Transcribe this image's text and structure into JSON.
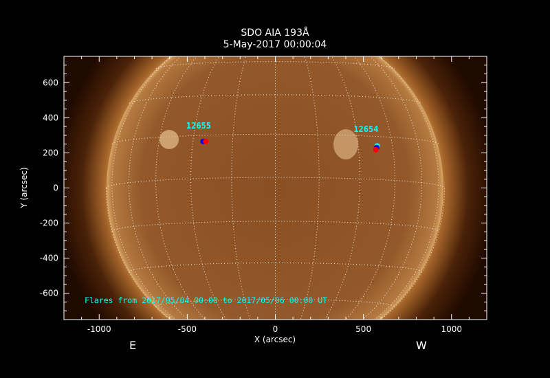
{
  "chart_data": {
    "type": "scatter",
    "title": "SDO AIA 193Å",
    "subtitle": "5-May-2017 00:00:04",
    "xlabel": "X (arcsec)",
    "ylabel": "Y (arcsec)",
    "xlim": [
      -1200,
      1200
    ],
    "ylim": [
      -750,
      750
    ],
    "xticks": [
      -1000,
      -500,
      0,
      500,
      1000
    ],
    "yticks": [
      -600,
      -400,
      -200,
      0,
      200,
      400,
      600
    ],
    "grid": "heliographic lat/lon dotted grid, 15° spacing",
    "background_image": "solar disk, AIA 193Å, copper colormap",
    "east_label": "E",
    "west_label": "W",
    "annotation": "Flares from 2017/05/04 00:00 to 2017/05/06 00:00 UT",
    "regions": [
      {
        "label": "12655",
        "x": -420,
        "y": 350,
        "flares": [
          {
            "x": -410,
            "y": 265,
            "color": "#0000ff"
          },
          {
            "x": -395,
            "y": 265,
            "color": "#ff0000"
          }
        ]
      },
      {
        "label": "12654",
        "x": 530,
        "y": 330,
        "flares": [
          {
            "x": 578,
            "y": 240,
            "color": "#00ffff"
          },
          {
            "x": 575,
            "y": 230,
            "color": "#0000ff"
          },
          {
            "x": 570,
            "y": 218,
            "color": "#ff0000"
          }
        ]
      }
    ],
    "colors": {
      "annotation": "#00ffff",
      "axes": "#ffffff",
      "grid": "#ffffff"
    }
  }
}
